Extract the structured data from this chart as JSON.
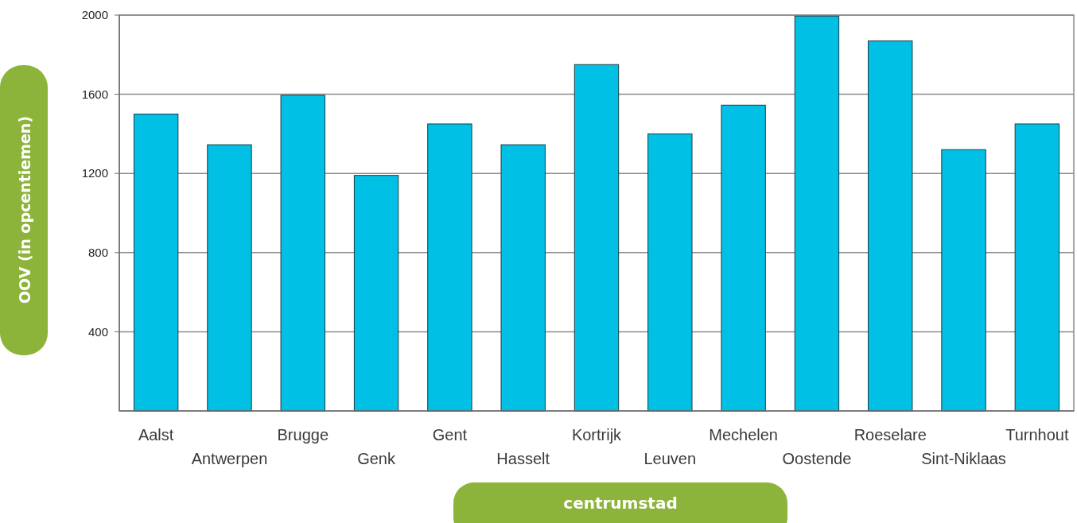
{
  "chart_data": {
    "type": "bar",
    "xlabel": "centrumstad",
    "ylabel": "OOV (in opcentiemen)",
    "categories": [
      "Aalst",
      "Antwerpen",
      "Brugge",
      "Genk",
      "Gent",
      "Hasselt",
      "Kortrijk",
      "Leuven",
      "Mechelen",
      "Oostende",
      "Roeselare",
      "Sint-Niklaas",
      "Turnhout"
    ],
    "values": [
      1500,
      1345,
      1595,
      1190,
      1450,
      1345,
      1750,
      1400,
      1545,
      1995,
      1870,
      1320,
      1450
    ],
    "color": "#00c1e5",
    "ylim": [
      0,
      2000
    ],
    "yticks": [
      400,
      800,
      1200,
      1600,
      2000
    ],
    "grid": "y"
  }
}
